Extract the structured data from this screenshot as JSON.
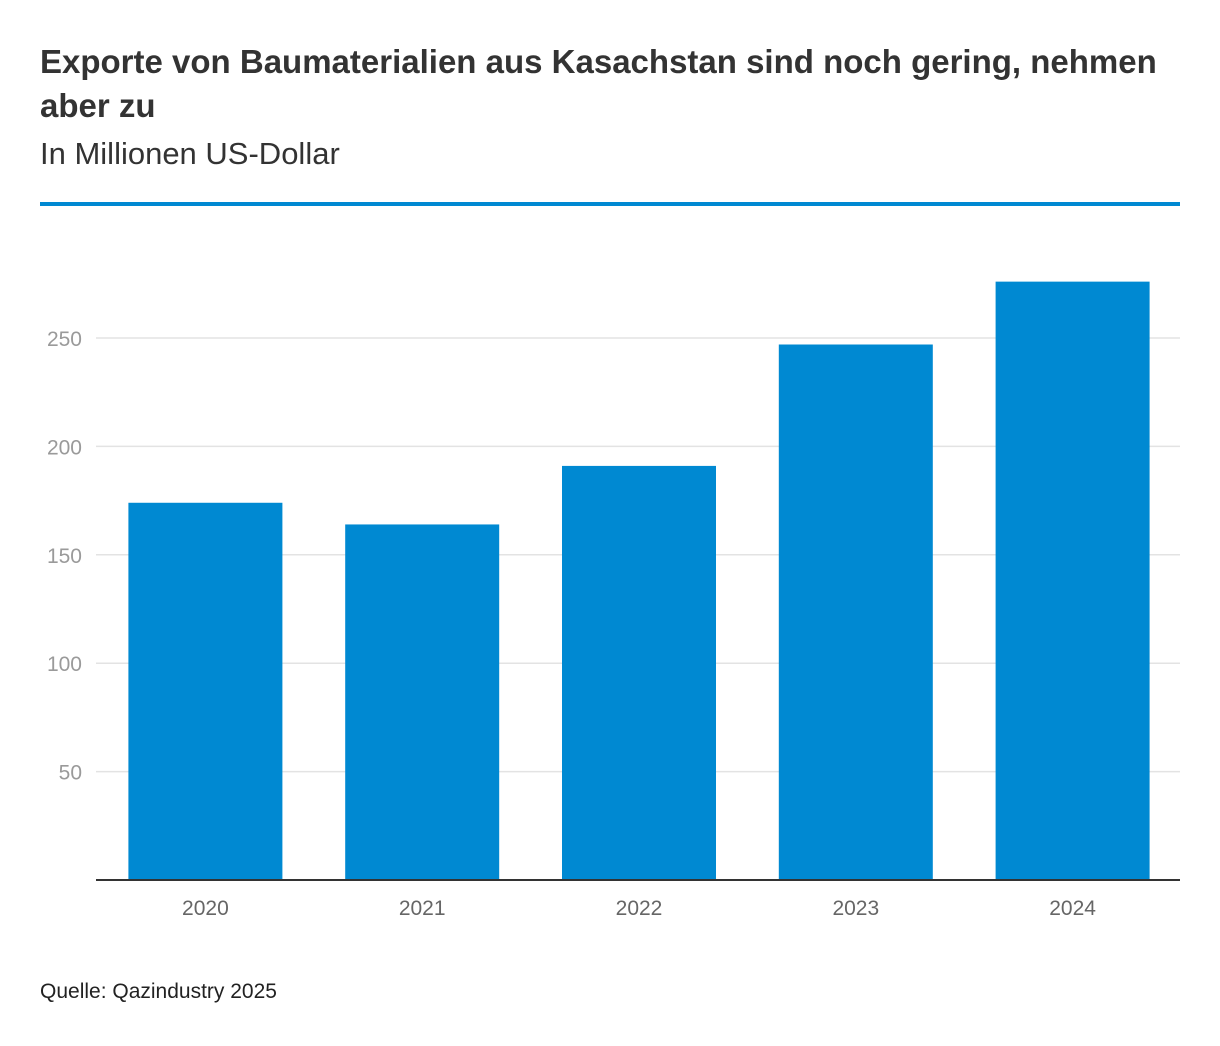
{
  "colors": {
    "accent": "#0089d2",
    "grid": "#e3e3e3",
    "axis": "#333333"
  },
  "chart_data": {
    "type": "bar",
    "title": "Exporte von Baumaterialien aus Kasachstan sind noch gering, nehmen aber zu",
    "subtitle": "In Millionen US-Dollar",
    "categories": [
      "2020",
      "2021",
      "2022",
      "2023",
      "2024"
    ],
    "values": [
      174,
      164,
      191,
      247,
      276
    ],
    "xlabel": "",
    "ylabel": "",
    "ylim": [
      0,
      275
    ],
    "yticks": [
      50,
      100,
      150,
      200,
      250
    ],
    "grid": true,
    "source": "Quelle: Qazindustry 2025"
  }
}
